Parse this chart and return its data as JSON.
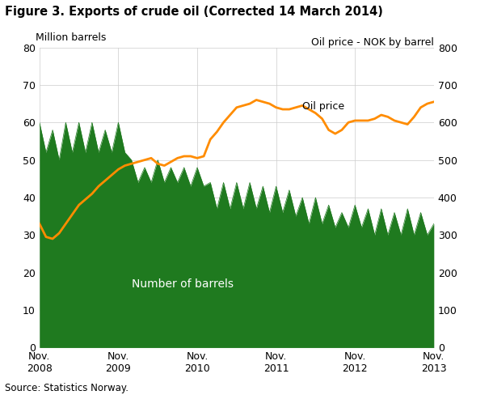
{
  "title": "Figure 3. Exports of crude oil (Corrected 14 March 2014)",
  "ylabel_left": "Million barrels",
  "ylabel_right": "Oil price - NOK by barrel",
  "source": "Source: Statistics Norway.",
  "ylim_left": [
    0,
    80
  ],
  "ylim_right": [
    0,
    800
  ],
  "yticks_left": [
    0,
    10,
    20,
    30,
    40,
    50,
    60,
    70,
    80
  ],
  "yticks_right": [
    0,
    100,
    200,
    300,
    400,
    500,
    600,
    700,
    800
  ],
  "xtick_labels": [
    "Nov.\n2008",
    "Nov.\n2009",
    "Nov.\n2010",
    "Nov.\n2011",
    "Nov.\n2012",
    "Nov.\n2013"
  ],
  "barrels_color": "#1f7a1f",
  "oil_price_color": "#ff8c00",
  "background_color": "#ffffff",
  "grid_color": "#cccccc",
  "annotation_barrels": "Number of barrels",
  "annotation_oil": "Oil price",
  "barrels": [
    60,
    52,
    58,
    50,
    60,
    52,
    60,
    52,
    60,
    52,
    58,
    52,
    60,
    52,
    50,
    44,
    48,
    44,
    50,
    44,
    48,
    44,
    48,
    43,
    48,
    43,
    44,
    37,
    44,
    37,
    44,
    37,
    44,
    37,
    43,
    36,
    43,
    36,
    42,
    35,
    40,
    33,
    40,
    33,
    38,
    32,
    36,
    32,
    38,
    32,
    37,
    30,
    37,
    30,
    36,
    30,
    37,
    30,
    36,
    30,
    33
  ],
  "oil_price": [
    330,
    295,
    290,
    305,
    330,
    355,
    380,
    395,
    410,
    430,
    445,
    460,
    475,
    485,
    490,
    495,
    500,
    505,
    490,
    485,
    495,
    505,
    510,
    510,
    505,
    510,
    555,
    575,
    600,
    620,
    640,
    645,
    650,
    660,
    655,
    650,
    640,
    635,
    635,
    640,
    645,
    635,
    625,
    610,
    580,
    570,
    580,
    600,
    605,
    605,
    605,
    610,
    620,
    615,
    605,
    600,
    595,
    615,
    640,
    650,
    655
  ]
}
